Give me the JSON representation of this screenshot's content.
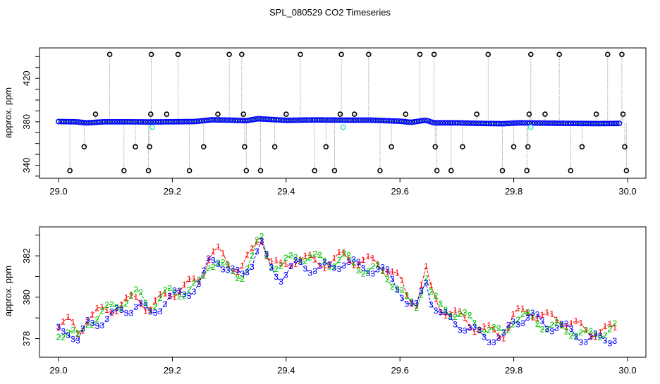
{
  "title": "SPL_080529  CO2 Timeseries",
  "chart_data": [
    {
      "type": "scatter",
      "title": "",
      "xlabel": "",
      "ylabel": "approx. ppm",
      "xlim": [
        29.0,
        30.0
      ],
      "ylim": [
        328,
        448
      ],
      "x_ticks": [
        "29.0",
        "29.2",
        "29.4",
        "29.6",
        "29.8",
        "30.0"
      ],
      "y_ticks": [
        "340",
        "380",
        "420"
      ],
      "colors": {
        "baseline": "#0000ff",
        "baseline_inner": "#2e8b57",
        "spike": "#000000",
        "offset": "#40e0d0",
        "stem": "#999999"
      },
      "baseline_series": [
        {
          "x": 29.0,
          "y": 380.2
        },
        {
          "x": 29.03,
          "y": 380.0
        },
        {
          "x": 29.05,
          "y": 379.0
        },
        {
          "x": 29.08,
          "y": 380.0
        },
        {
          "x": 29.12,
          "y": 380.0
        },
        {
          "x": 29.16,
          "y": 379.8
        },
        {
          "x": 29.2,
          "y": 380.0
        },
        {
          "x": 29.24,
          "y": 380.2
        },
        {
          "x": 29.27,
          "y": 381.8
        },
        {
          "x": 29.3,
          "y": 381.5
        },
        {
          "x": 29.33,
          "y": 381.0
        },
        {
          "x": 29.35,
          "y": 382.8
        },
        {
          "x": 29.4,
          "y": 381.3
        },
        {
          "x": 29.45,
          "y": 381.7
        },
        {
          "x": 29.5,
          "y": 381.5
        },
        {
          "x": 29.55,
          "y": 381.5
        },
        {
          "x": 29.6,
          "y": 380.5
        },
        {
          "x": 29.62,
          "y": 379.5
        },
        {
          "x": 29.645,
          "y": 381.5
        },
        {
          "x": 29.66,
          "y": 379.0
        },
        {
          "x": 29.7,
          "y": 379.0
        },
        {
          "x": 29.74,
          "y": 378.5
        },
        {
          "x": 29.78,
          "y": 378.2
        },
        {
          "x": 29.81,
          "y": 379.0
        },
        {
          "x": 29.85,
          "y": 378.8
        },
        {
          "x": 29.9,
          "y": 378.5
        },
        {
          "x": 29.95,
          "y": 378.3
        },
        {
          "x": 29.99,
          "y": 378.5
        }
      ],
      "spikes": [
        {
          "x": 29.02,
          "y": 335
        },
        {
          "x": 29.045,
          "y": 357
        },
        {
          "x": 29.065,
          "y": 387
        },
        {
          "x": 29.09,
          "y": 442
        },
        {
          "x": 29.115,
          "y": 335
        },
        {
          "x": 29.135,
          "y": 357
        },
        {
          "x": 29.158,
          "y": 335
        },
        {
          "x": 29.16,
          "y": 357
        },
        {
          "x": 29.162,
          "y": 387
        },
        {
          "x": 29.163,
          "y": 442
        },
        {
          "x": 29.19,
          "y": 387
        },
        {
          "x": 29.21,
          "y": 442
        },
        {
          "x": 29.23,
          "y": 335
        },
        {
          "x": 29.255,
          "y": 357
        },
        {
          "x": 29.28,
          "y": 387
        },
        {
          "x": 29.3,
          "y": 442
        },
        {
          "x": 29.322,
          "y": 442
        },
        {
          "x": 29.325,
          "y": 387
        },
        {
          "x": 29.327,
          "y": 357
        },
        {
          "x": 29.33,
          "y": 335
        },
        {
          "x": 29.355,
          "y": 335
        },
        {
          "x": 29.38,
          "y": 357
        },
        {
          "x": 29.4,
          "y": 387
        },
        {
          "x": 29.425,
          "y": 442
        },
        {
          "x": 29.45,
          "y": 335
        },
        {
          "x": 29.47,
          "y": 357
        },
        {
          "x": 29.485,
          "y": 335
        },
        {
          "x": 29.495,
          "y": 387
        },
        {
          "x": 29.497,
          "y": 442
        },
        {
          "x": 29.52,
          "y": 387
        },
        {
          "x": 29.545,
          "y": 442
        },
        {
          "x": 29.565,
          "y": 335
        },
        {
          "x": 29.585,
          "y": 357
        },
        {
          "x": 29.61,
          "y": 387
        },
        {
          "x": 29.635,
          "y": 442
        },
        {
          "x": 29.66,
          "y": 442
        },
        {
          "x": 29.662,
          "y": 357
        },
        {
          "x": 29.665,
          "y": 335
        },
        {
          "x": 29.69,
          "y": 335
        },
        {
          "x": 29.71,
          "y": 357
        },
        {
          "x": 29.735,
          "y": 387
        },
        {
          "x": 29.755,
          "y": 442
        },
        {
          "x": 29.78,
          "y": 335
        },
        {
          "x": 29.8,
          "y": 357
        },
        {
          "x": 29.823,
          "y": 335
        },
        {
          "x": 29.825,
          "y": 357
        },
        {
          "x": 29.827,
          "y": 387
        },
        {
          "x": 29.83,
          "y": 442
        },
        {
          "x": 29.855,
          "y": 387
        },
        {
          "x": 29.88,
          "y": 442
        },
        {
          "x": 29.9,
          "y": 335
        },
        {
          "x": 29.92,
          "y": 357
        },
        {
          "x": 29.945,
          "y": 387
        },
        {
          "x": 29.965,
          "y": 442
        },
        {
          "x": 29.99,
          "y": 442
        },
        {
          "x": 29.992,
          "y": 387
        },
        {
          "x": 29.995,
          "y": 357
        },
        {
          "x": 29.998,
          "y": 335
        }
      ],
      "offset_points": [
        {
          "x": 29.165,
          "y": 375
        },
        {
          "x": 29.5,
          "y": 375
        },
        {
          "x": 29.83,
          "y": 375
        }
      ]
    },
    {
      "type": "line",
      "title": "",
      "xlabel": "",
      "ylabel": "approx. ppm",
      "xlim": [
        29.0,
        30.0
      ],
      "ylim": [
        377.1,
        383.4
      ],
      "x_ticks": [
        "29.0",
        "29.2",
        "29.4",
        "29.6",
        "29.8",
        "30.0"
      ],
      "y_ticks": [
        "378",
        "380",
        "382"
      ],
      "marker_labels": [
        "1",
        "2",
        "3"
      ],
      "series": [
        {
          "name": "1",
          "color": "#ff0000",
          "offset": 0.25
        },
        {
          "name": "2",
          "color": "#00c000",
          "offset": 0.12
        },
        {
          "name": "3",
          "color": "#0000ff",
          "offset": -0.08
        }
      ],
      "base_x": [
        29.0,
        29.02,
        29.035,
        29.05,
        29.08,
        29.11,
        29.14,
        29.16,
        29.19,
        29.22,
        29.25,
        29.265,
        29.28,
        29.3,
        29.32,
        29.34,
        29.355,
        29.37,
        29.39,
        29.42,
        29.45,
        29.48,
        29.5,
        29.53,
        29.56,
        29.58,
        29.6,
        29.615,
        29.63,
        29.645,
        29.655,
        29.67,
        29.7,
        29.73,
        29.76,
        29.78,
        29.8,
        29.83,
        29.86,
        29.9,
        29.93,
        29.96,
        29.99
      ],
      "base_y": [
        378.3,
        378.4,
        377.9,
        378.7,
        379.1,
        379.5,
        379.9,
        379.3,
        380.0,
        380.2,
        380.6,
        381.7,
        381.8,
        381.2,
        381.0,
        381.8,
        382.8,
        381.6,
        381.2,
        381.8,
        381.6,
        381.5,
        381.8,
        381.4,
        381.3,
        381.0,
        380.4,
        379.6,
        379.5,
        381.1,
        380.0,
        379.3,
        379.0,
        378.5,
        378.2,
        378.0,
        378.9,
        379.0,
        378.6,
        378.4,
        378.0,
        378.2,
        378.3
      ]
    }
  ]
}
